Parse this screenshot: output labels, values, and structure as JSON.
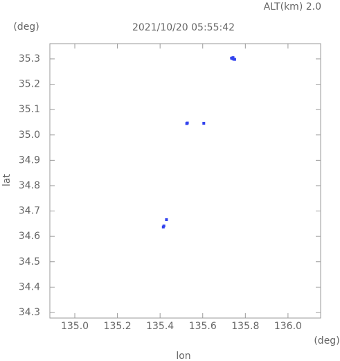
{
  "chart_data": {
    "type": "scatter",
    "annotation": "ALT(km) 2.0",
    "title": "2021/10/20 05:55:42",
    "y_unit": "(deg)",
    "x_unit": "(deg)",
    "ylabel": "lat",
    "xlabel": "lon",
    "x": [
      135.735,
      135.74,
      135.745,
      135.75,
      135.742,
      135.525,
      135.528,
      135.605,
      135.415,
      135.418,
      135.43
    ],
    "values": [
      35.303,
      35.301,
      35.299,
      35.298,
      35.305,
      35.045,
      35.047,
      35.046,
      34.637,
      34.641,
      34.666
    ],
    "color": "#3344ee",
    "xlim": [
      134.883,
      136.153
    ],
    "ylim": [
      34.278,
      35.36
    ],
    "xticks": [
      {
        "value": 135.0,
        "label": "135.0"
      },
      135.2,
      135.4,
      135.6,
      135.8,
      {
        "value": 136.0,
        "label": "136.0"
      }
    ],
    "yticks": [
      34.3,
      34.4,
      34.5,
      34.6,
      34.7,
      34.8,
      34.9,
      {
        "value": 35.0,
        "label": "35.0"
      },
      35.1,
      35.2,
      35.3
    ]
  }
}
